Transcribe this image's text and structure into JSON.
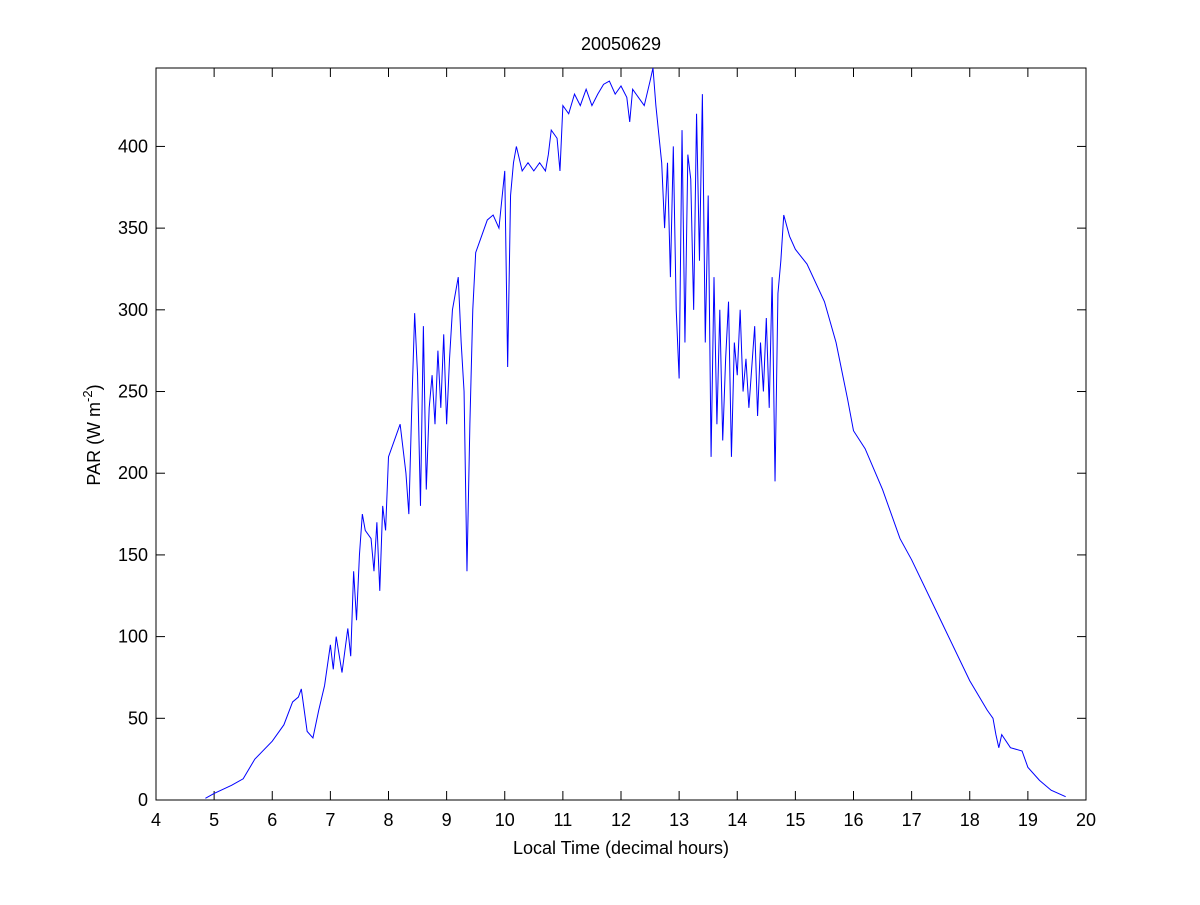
{
  "chart_data": {
    "type": "line",
    "title": "20050629",
    "xlabel": "Local Time (decimal hours)",
    "ylabel": {
      "text": "PAR (W m",
      "sup": "-2",
      "end": ")"
    },
    "x": [
      4.85,
      5.0,
      5.3,
      5.5,
      5.7,
      6.0,
      6.2,
      6.35,
      6.45,
      6.5,
      6.55,
      6.6,
      6.7,
      6.8,
      6.9,
      7.0,
      7.05,
      7.1,
      7.2,
      7.3,
      7.35,
      7.4,
      7.45,
      7.5,
      7.55,
      7.6,
      7.7,
      7.75,
      7.8,
      7.85,
      7.9,
      7.95,
      8.0,
      8.1,
      8.2,
      8.3,
      8.35,
      8.4,
      8.45,
      8.5,
      8.55,
      8.6,
      8.65,
      8.7,
      8.75,
      8.8,
      8.85,
      8.9,
      8.95,
      9.0,
      9.05,
      9.1,
      9.2,
      9.25,
      9.3,
      9.35,
      9.4,
      9.45,
      9.5,
      9.6,
      9.7,
      9.8,
      9.9,
      10.0,
      10.05,
      10.1,
      10.15,
      10.2,
      10.3,
      10.4,
      10.5,
      10.6,
      10.7,
      10.75,
      10.8,
      10.9,
      10.95,
      11.0,
      11.1,
      11.2,
      11.3,
      11.4,
      11.5,
      11.6,
      11.7,
      11.8,
      11.9,
      12.0,
      12.1,
      12.15,
      12.2,
      12.3,
      12.4,
      12.5,
      12.55,
      12.6,
      12.7,
      12.75,
      12.8,
      12.85,
      12.9,
      12.95,
      13.0,
      13.05,
      13.1,
      13.15,
      13.2,
      13.25,
      13.3,
      13.35,
      13.4,
      13.45,
      13.5,
      13.55,
      13.6,
      13.65,
      13.7,
      13.75,
      13.8,
      13.85,
      13.9,
      13.95,
      14.0,
      14.05,
      14.1,
      14.15,
      14.2,
      14.3,
      14.35,
      14.4,
      14.45,
      14.5,
      14.55,
      14.6,
      14.65,
      14.7,
      14.75,
      14.8,
      14.9,
      15.0,
      15.2,
      15.5,
      15.7,
      15.9,
      16.0,
      16.2,
      16.5,
      16.8,
      17.0,
      17.5,
      18.0,
      18.3,
      18.4,
      18.45,
      18.5,
      18.55,
      18.7,
      18.9,
      19.0,
      19.2,
      19.4,
      19.65
    ],
    "series": [
      {
        "color": "#0000ff",
        "values": [
          1,
          4,
          9,
          13,
          25,
          36,
          46,
          60,
          63,
          68,
          55,
          42,
          38,
          55,
          70,
          95,
          80,
          100,
          78,
          105,
          88,
          140,
          110,
          150,
          175,
          165,
          160,
          140,
          170,
          128,
          180,
          165,
          210,
          220,
          230,
          200,
          175,
          240,
          298,
          260,
          180,
          290,
          190,
          240,
          260,
          230,
          275,
          240,
          285,
          230,
          270,
          300,
          320,
          280,
          250,
          140,
          230,
          300,
          335,
          345,
          355,
          358,
          350,
          385,
          265,
          370,
          390,
          400,
          385,
          390,
          385,
          390,
          385,
          395,
          410,
          405,
          385,
          425,
          420,
          432,
          425,
          435,
          425,
          432,
          438,
          440,
          432,
          437,
          430,
          415,
          435,
          430,
          425,
          440,
          448,
          425,
          390,
          350,
          390,
          320,
          400,
          300,
          258,
          410,
          280,
          395,
          380,
          300,
          420,
          330,
          432,
          280,
          370,
          210,
          320,
          230,
          300,
          220,
          270,
          305,
          210,
          280,
          260,
          300,
          250,
          270,
          240,
          290,
          235,
          280,
          250,
          295,
          240,
          320,
          195,
          310,
          330,
          358,
          345,
          337,
          328,
          305,
          280,
          245,
          226,
          215,
          190,
          160,
          147,
          110,
          73,
          55,
          50,
          40,
          32,
          40,
          32,
          30,
          20,
          12,
          6,
          2
        ]
      }
    ],
    "xlim": [
      4,
      20
    ],
    "ylim": [
      0,
      448
    ],
    "xticks": [
      4,
      5,
      6,
      7,
      8,
      9,
      10,
      11,
      12,
      13,
      14,
      15,
      16,
      17,
      18,
      19,
      20
    ],
    "yticks": [
      0,
      50,
      100,
      150,
      200,
      250,
      300,
      350,
      400
    ]
  }
}
